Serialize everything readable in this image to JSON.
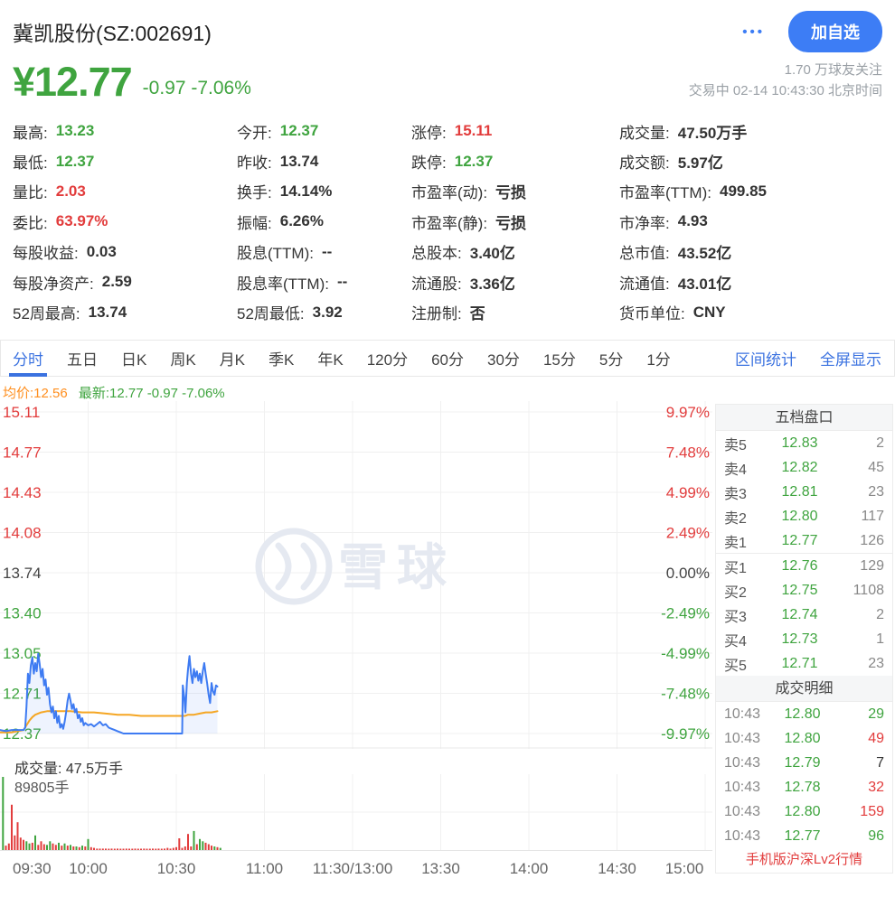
{
  "header": {
    "title": "冀凯股份(SZ:002691)",
    "more_icon": "•••",
    "add_button": "加自选",
    "price": "¥12.77",
    "change": "-0.97 -7.06%",
    "followers": "1.70 万球友关注",
    "session": "交易中 02-14 10:43:30 北京时间"
  },
  "stats": {
    "columns": [
      [
        {
          "label": "最高:",
          "value": "13.23",
          "color": "green"
        },
        {
          "label": "最低:",
          "value": "12.37",
          "color": "green"
        },
        {
          "label": "量比:",
          "value": "2.03",
          "color": "red"
        },
        {
          "label": "委比:",
          "value": "63.97%",
          "color": "red"
        },
        {
          "label": "每股收益:",
          "value": "0.03",
          "color": "dark"
        },
        {
          "label": "每股净资产:",
          "value": "2.59",
          "color": "dark"
        },
        {
          "label": "52周最高:",
          "value": "13.74",
          "color": "dark"
        }
      ],
      [
        {
          "label": "今开:",
          "value": "12.37",
          "color": "green"
        },
        {
          "label": "昨收:",
          "value": "13.74",
          "color": "dark"
        },
        {
          "label": "换手:",
          "value": "14.14%",
          "color": "dark"
        },
        {
          "label": "振幅:",
          "value": "6.26%",
          "color": "dark"
        },
        {
          "label": "股息(TTM):",
          "value": "--",
          "color": "dark"
        },
        {
          "label": "股息率(TTM):",
          "value": "--",
          "color": "dark"
        },
        {
          "label": "52周最低:",
          "value": "3.92",
          "color": "dark"
        }
      ],
      [
        {
          "label": "涨停:",
          "value": "15.11",
          "color": "red"
        },
        {
          "label": "跌停:",
          "value": "12.37",
          "color": "green"
        },
        {
          "label": "市盈率(动):",
          "value": "亏损",
          "color": "dark"
        },
        {
          "label": "市盈率(静):",
          "value": "亏损",
          "color": "dark"
        },
        {
          "label": "总股本:",
          "value": "3.40亿",
          "color": "dark"
        },
        {
          "label": "流通股:",
          "value": "3.36亿",
          "color": "dark"
        },
        {
          "label": "注册制:",
          "value": "否",
          "color": "dark"
        }
      ],
      [
        {
          "label": "成交量:",
          "value": "47.50万手",
          "color": "dark"
        },
        {
          "label": "成交额:",
          "value": "5.97亿",
          "color": "dark"
        },
        {
          "label": "市盈率(TTM):",
          "value": "499.85",
          "color": "dark"
        },
        {
          "label": "市净率:",
          "value": "4.93",
          "color": "dark"
        },
        {
          "label": "总市值:",
          "value": "43.52亿",
          "color": "dark"
        },
        {
          "label": "流通值:",
          "value": "43.01亿",
          "color": "dark"
        },
        {
          "label": "货币单位:",
          "value": "CNY",
          "color": "dark"
        }
      ]
    ]
  },
  "tabs": {
    "items": [
      {
        "label": "分时",
        "active": true
      },
      {
        "label": "五日",
        "active": false
      },
      {
        "label": "日K",
        "active": false
      },
      {
        "label": "周K",
        "active": false
      },
      {
        "label": "月K",
        "active": false
      },
      {
        "label": "季K",
        "active": false
      },
      {
        "label": "年K",
        "active": false
      },
      {
        "label": "120分",
        "active": false
      },
      {
        "label": "60分",
        "active": false
      },
      {
        "label": "30分",
        "active": false
      },
      {
        "label": "15分",
        "active": false
      },
      {
        "label": "5分",
        "active": false
      },
      {
        "label": "1分",
        "active": false
      }
    ],
    "links": [
      "区间统计",
      "全屏显示"
    ]
  },
  "legend": {
    "avg": "均价:12.56",
    "latest": "最新:12.77 -0.97 -7.06%"
  },
  "order_book": {
    "title": "五档盘口",
    "sells": [
      {
        "side": "卖5",
        "price": "12.83",
        "qty": "2"
      },
      {
        "side": "卖4",
        "price": "12.82",
        "qty": "45"
      },
      {
        "side": "卖3",
        "price": "12.81",
        "qty": "23"
      },
      {
        "side": "卖2",
        "price": "12.80",
        "qty": "117"
      },
      {
        "side": "卖1",
        "price": "12.77",
        "qty": "126"
      }
    ],
    "buys": [
      {
        "side": "买1",
        "price": "12.76",
        "qty": "129"
      },
      {
        "side": "买2",
        "price": "12.75",
        "qty": "1108"
      },
      {
        "side": "买3",
        "price": "12.74",
        "qty": "2"
      },
      {
        "side": "买4",
        "price": "12.73",
        "qty": "1"
      },
      {
        "side": "买5",
        "price": "12.71",
        "qty": "23"
      }
    ]
  },
  "trades": {
    "title": "成交明细",
    "rows": [
      {
        "time": "10:43",
        "price": "12.80",
        "qty": "29",
        "qty_color": "green"
      },
      {
        "time": "10:43",
        "price": "12.80",
        "qty": "49",
        "qty_color": "red"
      },
      {
        "time": "10:43",
        "price": "12.79",
        "qty": "7",
        "qty_color": "dark"
      },
      {
        "time": "10:43",
        "price": "12.78",
        "qty": "32",
        "qty_color": "red"
      },
      {
        "time": "10:43",
        "price": "12.80",
        "qty": "159",
        "qty_color": "red"
      },
      {
        "time": "10:43",
        "price": "12.77",
        "qty": "96",
        "qty_color": "green"
      }
    ],
    "footer_link": "手机版沪深Lv2行情"
  },
  "volume_section": {
    "caption": "成交量: 47.5万手",
    "max_label": "89805手"
  },
  "chart_data": {
    "type": "line",
    "title": "分时图 (timeshare)",
    "watermark": "雪球",
    "x_axis": [
      "09:30",
      "10:00",
      "10:30",
      "11:00",
      "11:30/13:00",
      "13:30",
      "14:00",
      "14:30",
      "15:00"
    ],
    "y_axis_left": [
      "15.11",
      "14.77",
      "14.43",
      "14.08",
      "13.74",
      "13.40",
      "13.05",
      "12.71",
      "12.37"
    ],
    "y_axis_right": [
      "9.97%",
      "7.48%",
      "4.99%",
      "2.49%",
      "0.00%",
      "-2.49%",
      "-4.99%",
      "-7.48%",
      "-9.97%"
    ],
    "price_range": [
      12.37,
      15.11
    ],
    "prev_close": 13.74,
    "session_minutes": 240,
    "grid": true,
    "series": [
      {
        "name": "最新价",
        "color": "#3e7bf2",
        "fill": "rgba(62,123,242,0.09)",
        "points": [
          [
            0,
            12.4
          ],
          [
            2,
            12.39
          ],
          [
            4,
            12.4
          ],
          [
            6,
            12.4
          ],
          [
            8,
            12.4
          ],
          [
            8.6,
            12.42
          ],
          [
            9,
            12.6
          ],
          [
            9.5,
            12.88
          ],
          [
            10,
            12.8
          ],
          [
            10.5,
            12.95
          ],
          [
            11,
            13.02
          ],
          [
            11.5,
            12.88
          ],
          [
            12,
            12.97
          ],
          [
            12.5,
            12.9
          ],
          [
            13,
            13.05
          ],
          [
            13.5,
            12.96
          ],
          [
            14,
            12.85
          ],
          [
            14.5,
            12.92
          ],
          [
            15,
            12.78
          ],
          [
            15.5,
            12.83
          ],
          [
            16,
            12.7
          ],
          [
            16.5,
            12.76
          ],
          [
            17,
            12.62
          ],
          [
            17.5,
            12.55
          ],
          [
            18,
            12.6
          ],
          [
            18.5,
            12.5
          ],
          [
            19,
            12.56
          ],
          [
            19.5,
            12.46
          ],
          [
            20,
            12.52
          ],
          [
            20.5,
            12.42
          ],
          [
            21,
            12.45
          ],
          [
            21.5,
            12.41
          ],
          [
            22,
            12.47
          ],
          [
            22.5,
            12.55
          ],
          [
            23,
            12.65
          ],
          [
            23.5,
            12.71
          ],
          [
            24,
            12.65
          ],
          [
            24.5,
            12.58
          ],
          [
            25,
            12.62
          ],
          [
            25.5,
            12.55
          ],
          [
            26,
            12.58
          ],
          [
            26.5,
            12.5
          ],
          [
            27,
            12.53
          ],
          [
            27.5,
            12.47
          ],
          [
            28,
            12.5
          ],
          [
            28.5,
            12.44
          ],
          [
            29,
            12.46
          ],
          [
            30,
            12.44
          ],
          [
            31,
            12.45
          ],
          [
            32,
            12.43
          ],
          [
            33,
            12.45
          ],
          [
            34,
            12.47
          ],
          [
            35,
            12.44
          ],
          [
            36,
            12.45
          ],
          [
            37,
            12.42
          ],
          [
            38,
            12.41
          ],
          [
            39,
            12.4
          ],
          [
            40,
            12.39
          ],
          [
            41,
            12.38
          ],
          [
            42,
            12.37
          ],
          [
            52,
            12.37
          ],
          [
            62,
            12.37
          ],
          [
            62.2,
            12.78
          ],
          [
            62.7,
            12.68
          ],
          [
            63.1,
            12.55
          ],
          [
            63.6,
            12.8
          ],
          [
            64,
            12.92
          ],
          [
            64.5,
            13.03
          ],
          [
            65,
            12.88
          ],
          [
            65.5,
            12.8
          ],
          [
            66,
            12.92
          ],
          [
            66.5,
            12.85
          ],
          [
            67,
            12.9
          ],
          [
            67.5,
            12.82
          ],
          [
            68,
            12.88
          ],
          [
            68.5,
            12.8
          ],
          [
            69,
            12.9
          ],
          [
            69.5,
            12.97
          ],
          [
            70,
            12.88
          ],
          [
            70.5,
            12.8
          ],
          [
            71,
            12.7
          ],
          [
            71.5,
            12.63
          ],
          [
            72,
            12.8
          ],
          [
            72.5,
            12.73
          ],
          [
            73,
            12.7
          ],
          [
            73.5,
            12.78
          ],
          [
            74,
            12.77
          ]
        ]
      },
      {
        "name": "均价",
        "color": "#f5a623",
        "points": [
          [
            0,
            12.38
          ],
          [
            4,
            12.38
          ],
          [
            8,
            12.4
          ],
          [
            9,
            12.44
          ],
          [
            10,
            12.48
          ],
          [
            11,
            12.51
          ],
          [
            12,
            12.53
          ],
          [
            14,
            12.55
          ],
          [
            16,
            12.56
          ],
          [
            20,
            12.56
          ],
          [
            24,
            12.56
          ],
          [
            28,
            12.55
          ],
          [
            32,
            12.55
          ],
          [
            36,
            12.54
          ],
          [
            40,
            12.53
          ],
          [
            44,
            12.53
          ],
          [
            48,
            12.52
          ],
          [
            52,
            12.52
          ],
          [
            56,
            12.52
          ],
          [
            60,
            12.52
          ],
          [
            62,
            12.52
          ],
          [
            63,
            12.52
          ],
          [
            64,
            12.53
          ],
          [
            66,
            12.53
          ],
          [
            68,
            12.54
          ],
          [
            70,
            12.55
          ],
          [
            72,
            12.55
          ],
          [
            74,
            12.56
          ]
        ]
      }
    ],
    "volume_max_hands": 89805,
    "volume_bars": [
      [
        1,
        1.0,
        "g"
      ],
      [
        2,
        0.06,
        "r"
      ],
      [
        3,
        0.09,
        "r"
      ],
      [
        4,
        0.62,
        "r"
      ],
      [
        5,
        0.2,
        "r"
      ],
      [
        6,
        0.38,
        "r"
      ],
      [
        7,
        0.17,
        "r"
      ],
      [
        8,
        0.14,
        "r"
      ],
      [
        9,
        0.12,
        "g"
      ],
      [
        10,
        0.09,
        "g"
      ],
      [
        11,
        0.1,
        "r"
      ],
      [
        12,
        0.2,
        "g"
      ],
      [
        13,
        0.07,
        "r"
      ],
      [
        14,
        0.12,
        "r"
      ],
      [
        15,
        0.08,
        "r"
      ],
      [
        16,
        0.07,
        "g"
      ],
      [
        17,
        0.12,
        "g"
      ],
      [
        18,
        0.09,
        "r"
      ],
      [
        19,
        0.07,
        "r"
      ],
      [
        20,
        0.1,
        "g"
      ],
      [
        21,
        0.06,
        "r"
      ],
      [
        22,
        0.09,
        "g"
      ],
      [
        23,
        0.06,
        "r"
      ],
      [
        24,
        0.07,
        "g"
      ],
      [
        25,
        0.05,
        "r"
      ],
      [
        26,
        0.05,
        "g"
      ],
      [
        27,
        0.04,
        "r"
      ],
      [
        28,
        0.06,
        "g"
      ],
      [
        29,
        0.05,
        "r"
      ],
      [
        30,
        0.15,
        "g"
      ],
      [
        31,
        0.04,
        "r"
      ],
      [
        32,
        0.03,
        "r"
      ],
      [
        33,
        0.02,
        "r"
      ],
      [
        34,
        0.02,
        "r"
      ],
      [
        35,
        0.02,
        "r"
      ],
      [
        36,
        0.02,
        "r"
      ],
      [
        37,
        0.015,
        "r"
      ],
      [
        38,
        0.02,
        "r"
      ],
      [
        39,
        0.015,
        "r"
      ],
      [
        40,
        0.02,
        "r"
      ],
      [
        41,
        0.015,
        "r"
      ],
      [
        42,
        0.015,
        "r"
      ],
      [
        43,
        0.02,
        "r"
      ],
      [
        44,
        0.015,
        "r"
      ],
      [
        45,
        0.015,
        "r"
      ],
      [
        46,
        0.02,
        "r"
      ],
      [
        47,
        0.015,
        "r"
      ],
      [
        48,
        0.015,
        "r"
      ],
      [
        49,
        0.02,
        "r"
      ],
      [
        50,
        0.015,
        "r"
      ],
      [
        51,
        0.015,
        "r"
      ],
      [
        52,
        0.02,
        "r"
      ],
      [
        53,
        0.015,
        "r"
      ],
      [
        54,
        0.02,
        "r"
      ],
      [
        55,
        0.015,
        "r"
      ],
      [
        56,
        0.02,
        "r"
      ],
      [
        57,
        0.03,
        "r"
      ],
      [
        58,
        0.02,
        "r"
      ],
      [
        59,
        0.03,
        "r"
      ],
      [
        60,
        0.04,
        "r"
      ],
      [
        61,
        0.16,
        "r"
      ],
      [
        62,
        0.03,
        "r"
      ],
      [
        63,
        0.05,
        "r"
      ],
      [
        64,
        0.22,
        "r"
      ],
      [
        65,
        0.05,
        "r"
      ],
      [
        66,
        0.26,
        "g"
      ],
      [
        67,
        0.08,
        "r"
      ],
      [
        68,
        0.15,
        "g"
      ],
      [
        69,
        0.12,
        "g"
      ],
      [
        70,
        0.1,
        "r"
      ],
      [
        71,
        0.08,
        "r"
      ],
      [
        72,
        0.06,
        "r"
      ],
      [
        73,
        0.05,
        "g"
      ],
      [
        74,
        0.04,
        "r"
      ],
      [
        75,
        0.03,
        "g"
      ]
    ],
    "colors": {
      "up": "#e23c3c",
      "down": "#3fa43f",
      "flat": "#333333",
      "grid": "#f0f0f0"
    }
  }
}
